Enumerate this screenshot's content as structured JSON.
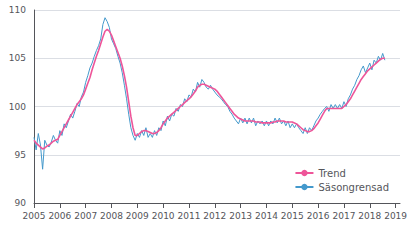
{
  "chart_data": {
    "type": "line",
    "x": [
      2005,
      2005.0833333333,
      2005.1666666667,
      2005.25,
      2005.3333333333,
      2005.4166666667,
      2005.5,
      2005.5833333333,
      2005.6666666667,
      2005.75,
      2005.8333333333,
      2005.9166666667,
      2006,
      2006.0833333333,
      2006.1666666667,
      2006.25,
      2006.3333333333,
      2006.4166666667,
      2006.5,
      2006.5833333333,
      2006.6666666667,
      2006.75,
      2006.8333333333,
      2006.9166666667,
      2007,
      2007.0833333333,
      2007.1666666667,
      2007.25,
      2007.3333333333,
      2007.4166666667,
      2007.5,
      2007.5833333333,
      2007.6666666667,
      2007.75,
      2007.8333333333,
      2007.9166666667,
      2008,
      2008.0833333333,
      2008.1666666667,
      2008.25,
      2008.3333333333,
      2008.4166666667,
      2008.5,
      2008.5833333333,
      2008.6666666667,
      2008.75,
      2008.8333333333,
      2008.9166666667,
      2009,
      2009.0833333333,
      2009.1666666667,
      2009.25,
      2009.3333333333,
      2009.4166666667,
      2009.5,
      2009.5833333333,
      2009.6666666667,
      2009.75,
      2009.8333333333,
      2009.9166666667,
      2010,
      2010.0833333333,
      2010.1666666667,
      2010.25,
      2010.3333333333,
      2010.4166666667,
      2010.5,
      2010.5833333333,
      2010.6666666667,
      2010.75,
      2010.8333333333,
      2010.9166666667,
      2011,
      2011.0833333333,
      2011.1666666667,
      2011.25,
      2011.3333333333,
      2011.4166666667,
      2011.5,
      2011.5833333333,
      2011.6666666667,
      2011.75,
      2011.8333333333,
      2011.9166666667,
      2012,
      2012.0833333333,
      2012.1666666667,
      2012.25,
      2012.3333333333,
      2012.4166666667,
      2012.5,
      2012.5833333333,
      2012.6666666667,
      2012.75,
      2012.8333333333,
      2012.9166666667,
      2013,
      2013.0833333333,
      2013.1666666667,
      2013.25,
      2013.3333333333,
      2013.4166666667,
      2013.5,
      2013.5833333333,
      2013.6666666667,
      2013.75,
      2013.8333333333,
      2013.9166666667,
      2014,
      2014.0833333333,
      2014.1666666667,
      2014.25,
      2014.3333333333,
      2014.4166666667,
      2014.5,
      2014.5833333333,
      2014.6666666667,
      2014.75,
      2014.8333333333,
      2014.9166666667,
      2015,
      2015.0833333333,
      2015.1666666667,
      2015.25,
      2015.3333333333,
      2015.4166666667,
      2015.5,
      2015.5833333333,
      2015.6666666667,
      2015.75,
      2015.8333333333,
      2015.9166666667,
      2016,
      2016.0833333333,
      2016.1666666667,
      2016.25,
      2016.3333333333,
      2016.4166666667,
      2016.5,
      2016.5833333333,
      2016.6666666667,
      2016.75,
      2016.8333333333,
      2016.9166666667,
      2017,
      2017.0833333333,
      2017.1666666667,
      2017.25,
      2017.3333333333,
      2017.4166666667,
      2017.5,
      2017.5833333333,
      2017.6666666667,
      2017.75,
      2017.8333333333,
      2017.9166666667,
      2018,
      2018.0833333333,
      2018.1666666667,
      2018.25,
      2018.3333333333,
      2018.4166666667,
      2018.5,
      2018.5833333333
    ],
    "series": [
      {
        "name": "Säsongrensad",
        "color": "#4499CC",
        "values": [
          96.8,
          95.5,
          97.2,
          96.0,
          93.5,
          96.5,
          96.0,
          95.8,
          96.3,
          97.0,
          96.5,
          96.2,
          97.5,
          97.0,
          98.2,
          97.8,
          98.5,
          99.2,
          98.8,
          99.5,
          100.3,
          100.0,
          101.0,
          101.5,
          102.5,
          103.2,
          104.0,
          104.5,
          105.2,
          105.8,
          106.3,
          107.0,
          108.5,
          109.2,
          108.8,
          108.2,
          107.0,
          106.5,
          106.0,
          105.2,
          104.5,
          103.5,
          102.2,
          100.8,
          99.2,
          97.8,
          97.0,
          96.5,
          97.2,
          96.8,
          97.5,
          97.0,
          97.8,
          96.8,
          97.2,
          96.8,
          97.5,
          97.0,
          97.8,
          97.5,
          98.5,
          98.0,
          99.0,
          98.5,
          99.2,
          99.0,
          99.8,
          99.5,
          100.2,
          100.0,
          100.8,
          100.5,
          101.2,
          101.0,
          101.8,
          101.5,
          102.5,
          102.0,
          102.8,
          102.5,
          102.0,
          101.8,
          102.2,
          101.8,
          101.5,
          101.2,
          101.0,
          100.8,
          100.5,
          100.2,
          100.0,
          99.5,
          99.2,
          98.8,
          98.5,
          98.2,
          98.8,
          98.3,
          98.8,
          98.2,
          98.8,
          98.3,
          98.8,
          98.0,
          98.5,
          98.2,
          98.5,
          98.0,
          98.5,
          98.0,
          98.5,
          98.2,
          98.8,
          98.3,
          98.8,
          98.2,
          98.5,
          98.0,
          98.5,
          97.8,
          98.2,
          97.8,
          98.2,
          97.8,
          97.5,
          97.2,
          97.8,
          97.2,
          97.8,
          97.5,
          98.0,
          98.5,
          98.8,
          99.2,
          99.5,
          99.8,
          100.0,
          99.5,
          100.2,
          99.8,
          100.2,
          99.8,
          100.2,
          99.8,
          100.5,
          100.0,
          100.8,
          101.2,
          101.8,
          102.2,
          102.8,
          103.2,
          103.8,
          104.2,
          103.5,
          104.0,
          104.5,
          103.8,
          104.8,
          104.5,
          105.2,
          104.8,
          105.5,
          104.8
        ]
      },
      {
        "name": "Trend",
        "color": "#EE5599",
        "values": [
          96.5,
          96.2,
          96.0,
          95.8,
          95.6,
          95.7,
          95.9,
          96.0,
          96.2,
          96.4,
          96.5,
          96.6,
          97.0,
          97.4,
          97.8,
          98.2,
          98.6,
          99.0,
          99.4,
          99.8,
          100.2,
          100.5,
          100.8,
          101.2,
          101.8,
          102.4,
          103.0,
          103.8,
          104.5,
          105.2,
          105.8,
          106.5,
          107.2,
          107.8,
          108.0,
          107.8,
          107.4,
          106.8,
          106.2,
          105.6,
          105.0,
          104.2,
          103.2,
          102.0,
          100.5,
          99.0,
          97.8,
          97.0,
          97.0,
          97.2,
          97.4,
          97.5,
          97.5,
          97.4,
          97.3,
          97.2,
          97.2,
          97.3,
          97.5,
          97.8,
          98.2,
          98.5,
          98.8,
          99.0,
          99.2,
          99.4,
          99.6,
          99.8,
          100.0,
          100.2,
          100.4,
          100.6,
          100.8,
          101.0,
          101.3,
          101.6,
          102.0,
          102.2,
          102.3,
          102.3,
          102.2,
          102.1,
          102.0,
          101.9,
          101.8,
          101.6,
          101.3,
          101.0,
          100.7,
          100.4,
          100.1,
          99.8,
          99.5,
          99.2,
          99.0,
          98.8,
          98.7,
          98.6,
          98.5,
          98.5,
          98.5,
          98.5,
          98.5,
          98.4,
          98.4,
          98.4,
          98.3,
          98.3,
          98.3,
          98.3,
          98.3,
          98.4,
          98.4,
          98.5,
          98.5,
          98.5,
          98.5,
          98.4,
          98.4,
          98.4,
          98.4,
          98.3,
          98.2,
          98.0,
          97.8,
          97.6,
          97.5,
          97.4,
          97.4,
          97.5,
          97.7,
          98.0,
          98.3,
          98.7,
          99.1,
          99.5,
          99.8,
          99.8,
          99.8,
          99.8,
          99.8,
          99.8,
          99.8,
          99.8,
          100.0,
          100.2,
          100.5,
          100.8,
          101.2,
          101.6,
          102.0,
          102.4,
          102.8,
          103.1,
          103.4,
          103.7,
          103.9,
          104.1,
          104.3,
          104.5,
          104.7,
          104.9,
          105.0,
          105.0
        ]
      }
    ],
    "xlim": [
      2005,
      2019.17
    ],
    "xticks": [
      2005,
      2006,
      2007,
      2008,
      2009,
      2010,
      2011,
      2012,
      2013,
      2014,
      2015,
      2016,
      2017,
      2018,
      2019
    ],
    "ylim": [
      90,
      110
    ],
    "yticks": [
      90,
      95,
      100,
      105,
      110
    ],
    "grid": true,
    "legend": "lower right"
  }
}
